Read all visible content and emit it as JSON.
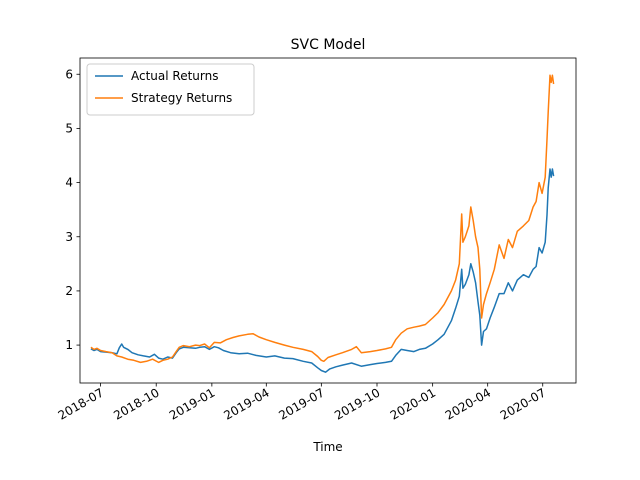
{
  "chart_data": {
    "type": "line",
    "title": "SVC Model",
    "xlabel": "Time",
    "ylabel": "",
    "xlim": [
      "2018-05-28",
      "2020-08-25"
    ],
    "ylim": [
      0.3,
      6.3
    ],
    "x_ticks": [
      "2018-07",
      "2018-10",
      "2019-01",
      "2019-04",
      "2019-07",
      "2019-10",
      "2020-01",
      "2020-04",
      "2020-07"
    ],
    "y_ticks": [
      1,
      2,
      3,
      4,
      5,
      6
    ],
    "grid": false,
    "legend": {
      "placement": "top-left",
      "entries": [
        "Actual Returns",
        "Strategy Returns"
      ]
    },
    "series": [
      {
        "name": "Actual Returns",
        "color": "#1f77b4",
        "points": [
          [
            "2018-06-15",
            0.93
          ],
          [
            "2018-06-20",
            0.9
          ],
          [
            "2018-06-25",
            0.92
          ],
          [
            "2018-07-01",
            0.88
          ],
          [
            "2018-07-10",
            0.87
          ],
          [
            "2018-07-20",
            0.86
          ],
          [
            "2018-07-28",
            0.84
          ],
          [
            "2018-08-01",
            0.95
          ],
          [
            "2018-08-05",
            1.02
          ],
          [
            "2018-08-08",
            0.96
          ],
          [
            "2018-08-15",
            0.92
          ],
          [
            "2018-08-22",
            0.86
          ],
          [
            "2018-09-01",
            0.82
          ],
          [
            "2018-09-10",
            0.8
          ],
          [
            "2018-09-20",
            0.78
          ],
          [
            "2018-09-28",
            0.83
          ],
          [
            "2018-10-05",
            0.76
          ],
          [
            "2018-10-12",
            0.74
          ],
          [
            "2018-10-20",
            0.78
          ],
          [
            "2018-10-28",
            0.76
          ],
          [
            "2018-11-03",
            0.86
          ],
          [
            "2018-11-08",
            0.93
          ],
          [
            "2018-11-15",
            0.96
          ],
          [
            "2018-11-25",
            0.95
          ],
          [
            "2018-12-05",
            0.94
          ],
          [
            "2018-12-12",
            0.96
          ],
          [
            "2018-12-20",
            0.97
          ],
          [
            "2018-12-28",
            0.92
          ],
          [
            "2019-01-05",
            0.97
          ],
          [
            "2019-01-12",
            0.95
          ],
          [
            "2019-01-20",
            0.9
          ],
          [
            "2019-02-01",
            0.86
          ],
          [
            "2019-02-15",
            0.84
          ],
          [
            "2019-03-01",
            0.85
          ],
          [
            "2019-03-15",
            0.81
          ],
          [
            "2019-04-01",
            0.78
          ],
          [
            "2019-04-15",
            0.8
          ],
          [
            "2019-05-01",
            0.76
          ],
          [
            "2019-05-15",
            0.75
          ],
          [
            "2019-06-01",
            0.7
          ],
          [
            "2019-06-15",
            0.67
          ],
          [
            "2019-06-25",
            0.58
          ],
          [
            "2019-07-01",
            0.53
          ],
          [
            "2019-07-08",
            0.5
          ],
          [
            "2019-07-15",
            0.56
          ],
          [
            "2019-07-25",
            0.6
          ],
          [
            "2019-08-05",
            0.63
          ],
          [
            "2019-08-20",
            0.67
          ],
          [
            "2019-09-05",
            0.61
          ],
          [
            "2019-09-20",
            0.64
          ],
          [
            "2019-10-01",
            0.66
          ],
          [
            "2019-10-15",
            0.68
          ],
          [
            "2019-10-25",
            0.7
          ],
          [
            "2019-11-01",
            0.81
          ],
          [
            "2019-11-10",
            0.92
          ],
          [
            "2019-11-20",
            0.9
          ],
          [
            "2019-12-01",
            0.88
          ],
          [
            "2019-12-10",
            0.92
          ],
          [
            "2019-12-20",
            0.94
          ],
          [
            "2020-01-01",
            1.02
          ],
          [
            "2020-01-10",
            1.1
          ],
          [
            "2020-01-20",
            1.2
          ],
          [
            "2020-02-01",
            1.45
          ],
          [
            "2020-02-08",
            1.68
          ],
          [
            "2020-02-14",
            1.9
          ],
          [
            "2020-02-18",
            2.4
          ],
          [
            "2020-02-20",
            2.05
          ],
          [
            "2020-02-24",
            2.12
          ],
          [
            "2020-03-01",
            2.3
          ],
          [
            "2020-03-04",
            2.5
          ],
          [
            "2020-03-08",
            2.35
          ],
          [
            "2020-03-12",
            2.15
          ],
          [
            "2020-03-16",
            1.8
          ],
          [
            "2020-03-19",
            1.55
          ],
          [
            "2020-03-22",
            1.0
          ],
          [
            "2020-03-25",
            1.25
          ],
          [
            "2020-03-30",
            1.3
          ],
          [
            "2020-04-05",
            1.5
          ],
          [
            "2020-04-12",
            1.7
          ],
          [
            "2020-04-20",
            1.95
          ],
          [
            "2020-04-28",
            1.95
          ],
          [
            "2020-05-05",
            2.15
          ],
          [
            "2020-05-12",
            2.0
          ],
          [
            "2020-05-20",
            2.2
          ],
          [
            "2020-05-30",
            2.3
          ],
          [
            "2020-06-08",
            2.25
          ],
          [
            "2020-06-15",
            2.4
          ],
          [
            "2020-06-20",
            2.45
          ],
          [
            "2020-06-25",
            2.8
          ],
          [
            "2020-06-30",
            2.7
          ],
          [
            "2020-07-05",
            2.9
          ],
          [
            "2020-07-08",
            3.4
          ],
          [
            "2020-07-10",
            3.9
          ],
          [
            "2020-07-13",
            4.25
          ],
          [
            "2020-07-15",
            4.1
          ],
          [
            "2020-07-17",
            4.25
          ],
          [
            "2020-07-19",
            4.12
          ]
        ]
      },
      {
        "name": "Strategy Returns",
        "color": "#ff7f0e",
        "points": [
          [
            "2018-06-15",
            0.96
          ],
          [
            "2018-06-20",
            0.92
          ],
          [
            "2018-06-25",
            0.94
          ],
          [
            "2018-07-01",
            0.9
          ],
          [
            "2018-07-10",
            0.88
          ],
          [
            "2018-07-20",
            0.86
          ],
          [
            "2018-07-28",
            0.8
          ],
          [
            "2018-08-05",
            0.78
          ],
          [
            "2018-08-15",
            0.74
          ],
          [
            "2018-08-25",
            0.72
          ],
          [
            "2018-09-05",
            0.68
          ],
          [
            "2018-09-15",
            0.7
          ],
          [
            "2018-09-25",
            0.74
          ],
          [
            "2018-10-05",
            0.68
          ],
          [
            "2018-10-12",
            0.72
          ],
          [
            "2018-10-20",
            0.74
          ],
          [
            "2018-10-28",
            0.78
          ],
          [
            "2018-11-03",
            0.88
          ],
          [
            "2018-11-08",
            0.96
          ],
          [
            "2018-11-15",
            0.99
          ],
          [
            "2018-11-25",
            0.97
          ],
          [
            "2018-12-05",
            1.0
          ],
          [
            "2018-12-12",
            0.99
          ],
          [
            "2018-12-20",
            1.02
          ],
          [
            "2018-12-28",
            0.95
          ],
          [
            "2019-01-05",
            1.05
          ],
          [
            "2019-01-15",
            1.04
          ],
          [
            "2019-01-25",
            1.1
          ],
          [
            "2019-02-05",
            1.14
          ],
          [
            "2019-02-15",
            1.17
          ],
          [
            "2019-03-01",
            1.2
          ],
          [
            "2019-03-10",
            1.21
          ],
          [
            "2019-03-20",
            1.15
          ],
          [
            "2019-04-01",
            1.1
          ],
          [
            "2019-04-15",
            1.05
          ],
          [
            "2019-05-01",
            1.0
          ],
          [
            "2019-05-15",
            0.96
          ],
          [
            "2019-06-01",
            0.92
          ],
          [
            "2019-06-15",
            0.88
          ],
          [
            "2019-06-25",
            0.79
          ],
          [
            "2019-07-01",
            0.72
          ],
          [
            "2019-07-05",
            0.7
          ],
          [
            "2019-07-12",
            0.77
          ],
          [
            "2019-07-25",
            0.82
          ],
          [
            "2019-08-05",
            0.86
          ],
          [
            "2019-08-20",
            0.92
          ],
          [
            "2019-08-28",
            0.97
          ],
          [
            "2019-09-05",
            0.86
          ],
          [
            "2019-09-20",
            0.88
          ],
          [
            "2019-10-01",
            0.9
          ],
          [
            "2019-10-15",
            0.93
          ],
          [
            "2019-10-25",
            0.96
          ],
          [
            "2019-11-01",
            1.1
          ],
          [
            "2019-11-10",
            1.22
          ],
          [
            "2019-11-20",
            1.3
          ],
          [
            "2019-12-01",
            1.33
          ],
          [
            "2019-12-10",
            1.35
          ],
          [
            "2019-12-20",
            1.38
          ],
          [
            "2020-01-01",
            1.5
          ],
          [
            "2020-01-10",
            1.6
          ],
          [
            "2020-01-20",
            1.75
          ],
          [
            "2020-02-01",
            2.0
          ],
          [
            "2020-02-08",
            2.2
          ],
          [
            "2020-02-14",
            2.5
          ],
          [
            "2020-02-18",
            3.42
          ],
          [
            "2020-02-20",
            2.9
          ],
          [
            "2020-02-24",
            3.0
          ],
          [
            "2020-03-01",
            3.2
          ],
          [
            "2020-03-04",
            3.55
          ],
          [
            "2020-03-08",
            3.3
          ],
          [
            "2020-03-12",
            3.0
          ],
          [
            "2020-03-16",
            2.8
          ],
          [
            "2020-03-19",
            2.4
          ],
          [
            "2020-03-22",
            1.5
          ],
          [
            "2020-03-25",
            1.75
          ],
          [
            "2020-03-30",
            1.95
          ],
          [
            "2020-04-05",
            2.15
          ],
          [
            "2020-04-12",
            2.4
          ],
          [
            "2020-04-20",
            2.85
          ],
          [
            "2020-04-28",
            2.6
          ],
          [
            "2020-05-05",
            2.95
          ],
          [
            "2020-05-12",
            2.8
          ],
          [
            "2020-05-20",
            3.1
          ],
          [
            "2020-05-30",
            3.2
          ],
          [
            "2020-06-08",
            3.3
          ],
          [
            "2020-06-15",
            3.55
          ],
          [
            "2020-06-20",
            3.65
          ],
          [
            "2020-06-25",
            4.0
          ],
          [
            "2020-06-30",
            3.8
          ],
          [
            "2020-07-05",
            4.1
          ],
          [
            "2020-07-08",
            4.8
          ],
          [
            "2020-07-10",
            5.3
          ],
          [
            "2020-07-13",
            5.98
          ],
          [
            "2020-07-15",
            5.85
          ],
          [
            "2020-07-17",
            5.98
          ],
          [
            "2020-07-19",
            5.82
          ]
        ]
      }
    ]
  }
}
